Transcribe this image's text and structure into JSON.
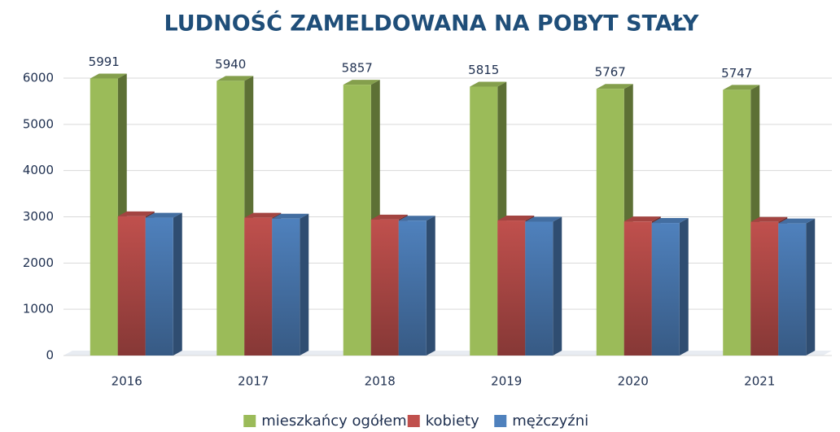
{
  "chart_data": {
    "type": "bar3d",
    "title": "LUDNOŚĆ ZAMELDOWANA NA POBYT STAŁY",
    "categories": [
      "2016",
      "2017",
      "2018",
      "2019",
      "2020",
      "2021"
    ],
    "series": [
      {
        "name": "mieszkańcy ogółem",
        "color": "#9bbb59",
        "values": [
          5991,
          5940,
          5857,
          5815,
          5767,
          5747
        ],
        "data_labels": true
      },
      {
        "name": "kobiety",
        "color": "#c0504d",
        "values": [
          3010,
          2980,
          2940,
          2920,
          2900,
          2890
        ]
      },
      {
        "name": "mężczyźni",
        "color": "#4f81bd",
        "values": [
          2981,
          2960,
          2917,
          2895,
          2867,
          2857
        ]
      }
    ],
    "ylim": [
      0,
      6000
    ],
    "yticks": [
      0,
      1000,
      2000,
      3000,
      4000,
      5000,
      6000
    ],
    "grid": true,
    "legend": "bottom"
  }
}
